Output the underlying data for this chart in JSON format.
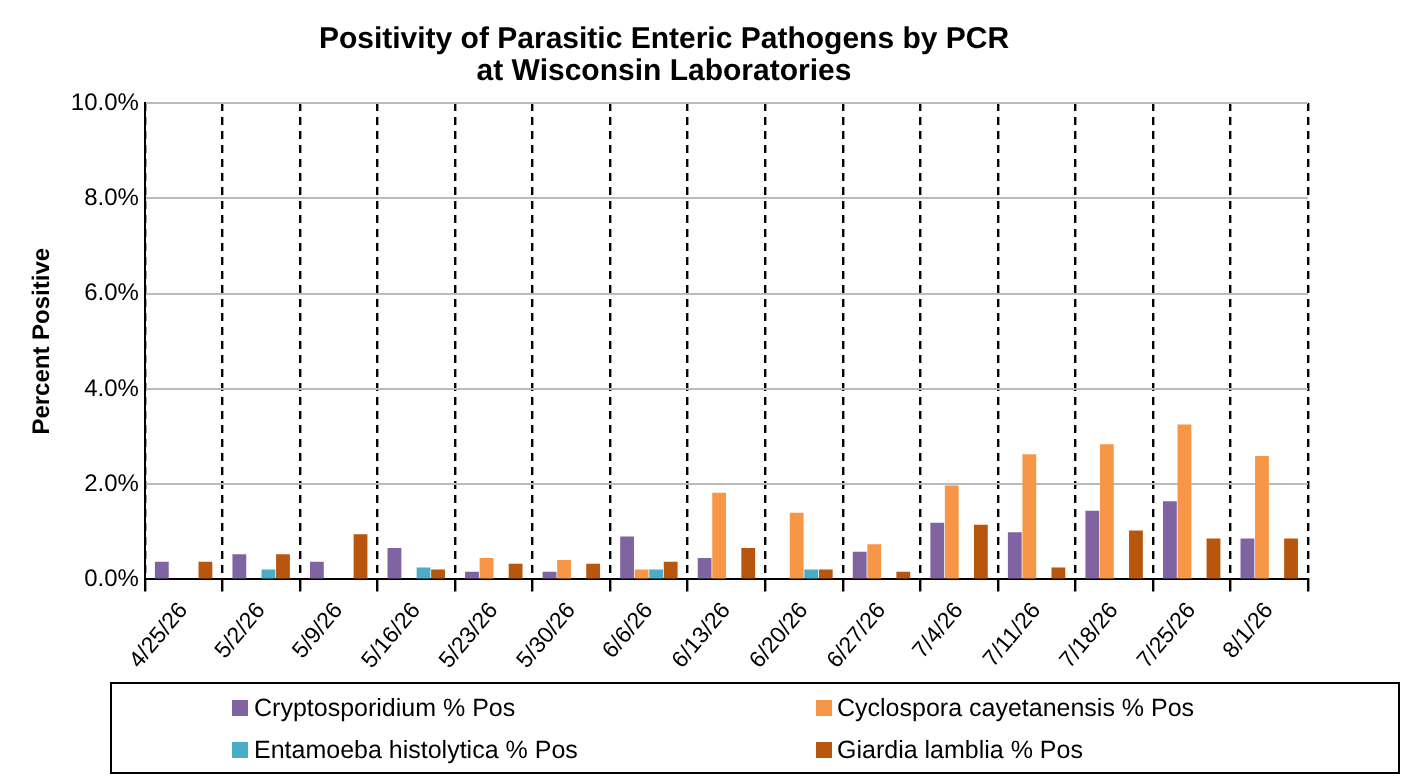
{
  "chart_data": {
    "type": "bar",
    "title": "Positivity of Parasitic Enteric Pathogens by PCR\nat Wisconsin Laboratories",
    "ylabel": "Percent Positive",
    "categories": [
      "4/25/26",
      "5/2/26",
      "5/9/26",
      "5/16/26",
      "5/23/26",
      "5/30/26",
      "6/6/26",
      "6/13/26",
      "6/20/26",
      "6/27/26",
      "7/4/26",
      "7/11/26",
      "7/18/26",
      "7/25/26",
      "8/1/26"
    ],
    "series": [
      {
        "name": "Cryptosporidium % Pos",
        "color": "#8064a2",
        "values": [
          0.37,
          0.53,
          0.37,
          0.66,
          0.16,
          0.16,
          0.9,
          0.45,
          0,
          0.58,
          1.19,
          0.99,
          1.44,
          1.64,
          0.86
        ]
      },
      {
        "name": "Cyclospora cayetanensis % Pos",
        "color": "#f79646",
        "values": [
          0,
          0,
          0,
          0,
          0.45,
          0.41,
          0.21,
          1.82,
          1.4,
          0.74,
          1.97,
          2.63,
          2.84,
          3.25,
          2.59
        ]
      },
      {
        "name": "Entamoeba histolytica % Pos",
        "color": "#4bacc6",
        "values": [
          0,
          0.21,
          0,
          0.25,
          0,
          0,
          0.21,
          0,
          0.21,
          0,
          0,
          0,
          0,
          0,
          0
        ]
      },
      {
        "name": "Giardia lamblia % Pos",
        "color": "#b8560d",
        "values": [
          0.37,
          0.53,
          0.95,
          0.21,
          0.33,
          0.33,
          0.37,
          0.66,
          0.21,
          0.16,
          1.15,
          0.25,
          1.03,
          0.86,
          0.86
        ]
      }
    ],
    "ylim": [
      0,
      10
    ],
    "yticks": [
      {
        "value": 0,
        "label": "0.0%"
      },
      {
        "value": 2,
        "label": "2.0%"
      },
      {
        "value": 4,
        "label": "4.0%"
      },
      {
        "value": 6,
        "label": "6.0%"
      },
      {
        "value": 8,
        "label": "8.0%"
      },
      {
        "value": 10,
        "label": "10.0%"
      }
    ],
    "grid": true,
    "legend": "bottom"
  }
}
